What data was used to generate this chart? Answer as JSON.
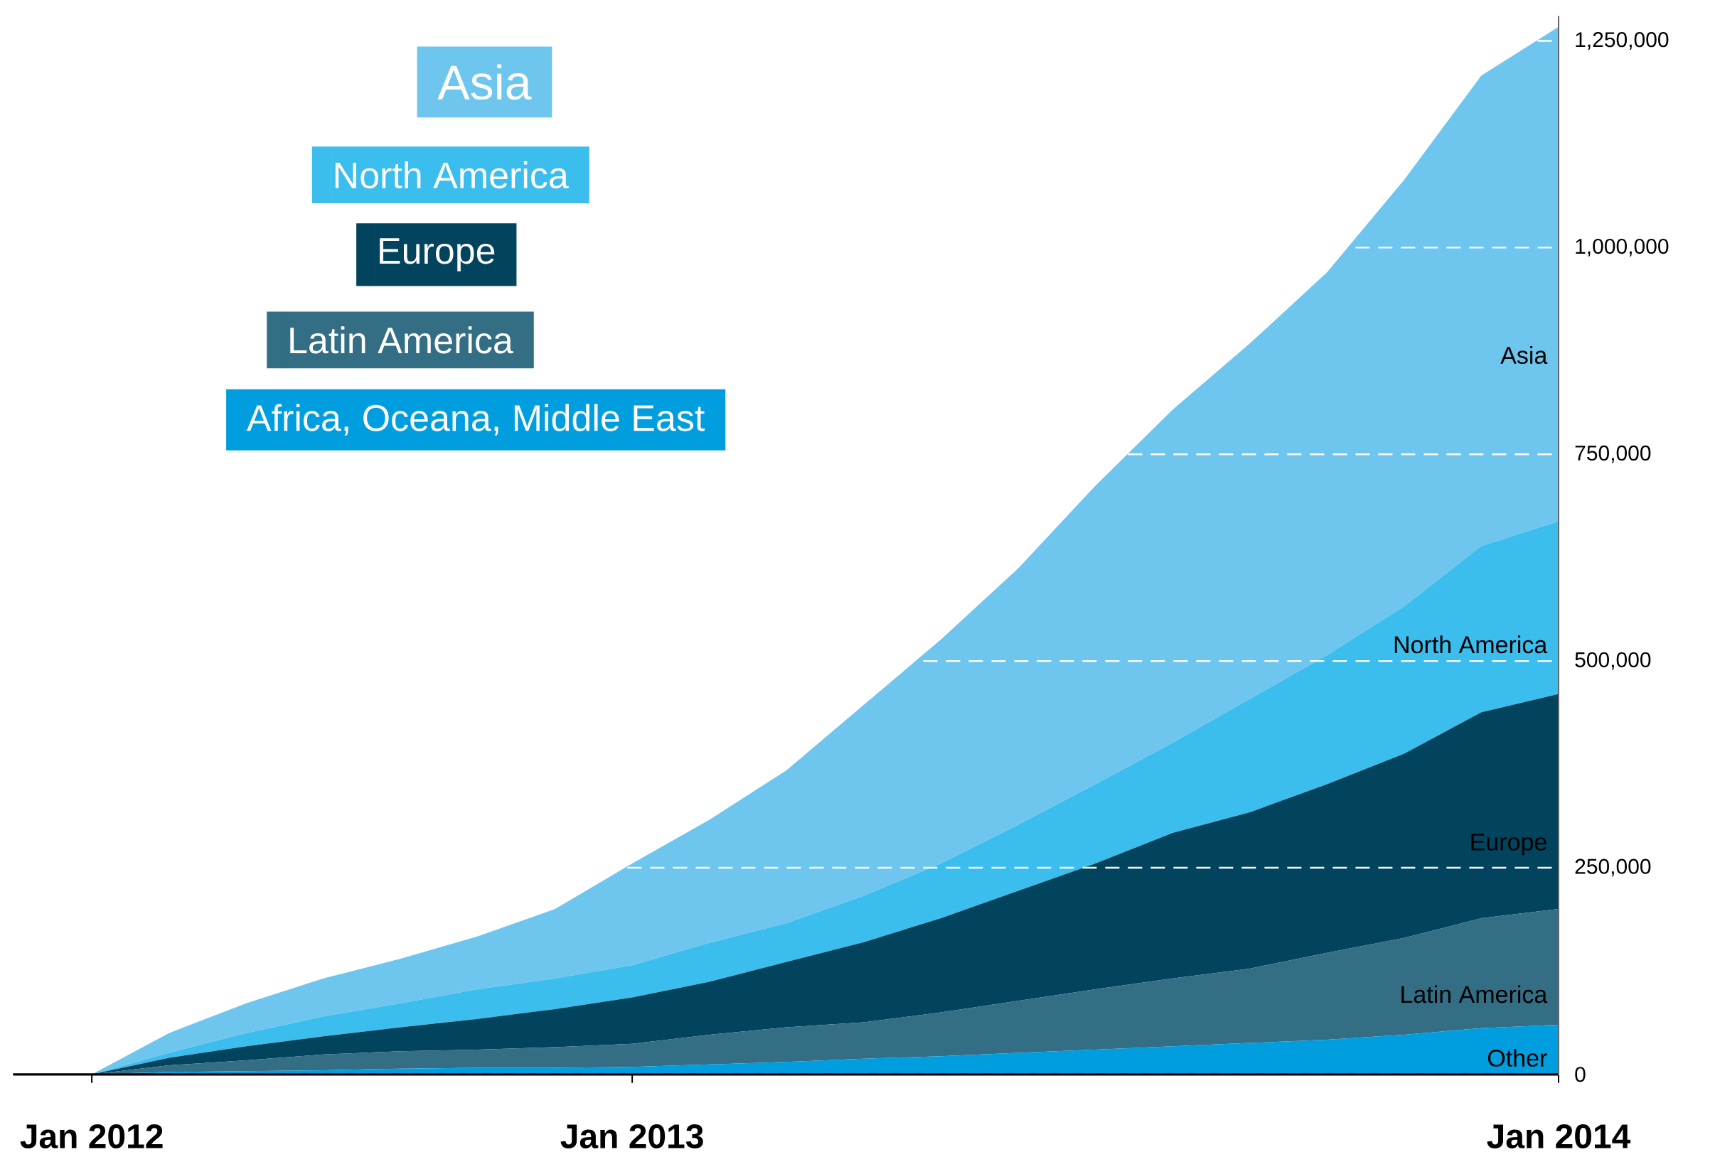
{
  "chart_data": {
    "type": "area",
    "stacked": true,
    "categories": [
      "Jan 2012",
      null,
      null,
      null,
      null,
      null,
      null,
      "Jan 2013",
      null,
      null,
      null,
      null,
      null,
      null,
      null,
      null,
      null,
      null,
      null,
      "Jan 2014"
    ],
    "series": [
      {
        "name": "Africa, Oceana, Middle East",
        "color": "#009ddf",
        "values": [
          0,
          3000,
          4000,
          5000,
          7000,
          8000,
          8000,
          9000,
          12000,
          15000,
          19000,
          22000,
          26000,
          30000,
          34000,
          38000,
          42000,
          48000,
          56000,
          60000
        ]
      },
      {
        "name": "Latin America",
        "color": "#336e85",
        "values": [
          0,
          8000,
          13000,
          19000,
          21000,
          22000,
          25000,
          28000,
          36000,
          42000,
          44000,
          53000,
          63000,
          73000,
          82000,
          90000,
          105000,
          117000,
          133000,
          140000
        ]
      },
      {
        "name": "Europe",
        "color": "#02435e",
        "values": [
          0,
          9000,
          17000,
          22000,
          29000,
          37000,
          46000,
          56000,
          64000,
          79000,
          97000,
          114000,
          133000,
          152000,
          176000,
          189000,
          204000,
          223000,
          249000,
          260000
        ]
      },
      {
        "name": "North America",
        "color": "#3bbdee",
        "values": [
          0,
          6000,
          16000,
          24000,
          29000,
          36000,
          37000,
          39000,
          47000,
          47000,
          56000,
          66000,
          80000,
          96000,
          109000,
          137000,
          156000,
          178000,
          201000,
          209000
        ]
      },
      {
        "name": "Asia",
        "color": "#6ec6ee",
        "values": [
          0,
          24000,
          36000,
          46000,
          54000,
          64000,
          84000,
          123000,
          149000,
          185000,
          231000,
          271000,
          310000,
          361000,
          403000,
          430000,
          463000,
          516000,
          569000,
          598000
        ]
      }
    ],
    "ylim": [
      0,
      1280000
    ],
    "yticks": [
      {
        "value": 0,
        "label": "0"
      },
      {
        "value": 250000,
        "label": "250,000"
      },
      {
        "value": 500000,
        "label": "500,000"
      },
      {
        "value": 750000,
        "label": "750,000"
      },
      {
        "value": 1000000,
        "label": "1,000,000"
      },
      {
        "value": 1250000,
        "label": "1,250,000"
      }
    ],
    "grid": "y",
    "line_style": "dashed",
    "legend": "top left",
    "annotations": [
      {
        "text": "Asia",
        "x": "Jan 2014",
        "y": 870000
      },
      {
        "text": "North America",
        "x": "Jan 2014",
        "y": 520000
      },
      {
        "text": "Europe",
        "x": "Jan 2014",
        "y": 278000
      },
      {
        "text": "Latin America",
        "x": "Jan 2014",
        "y": 97000
      },
      {
        "text": "Other",
        "x": "Jan 2014",
        "y": 20000
      }
    ]
  }
}
